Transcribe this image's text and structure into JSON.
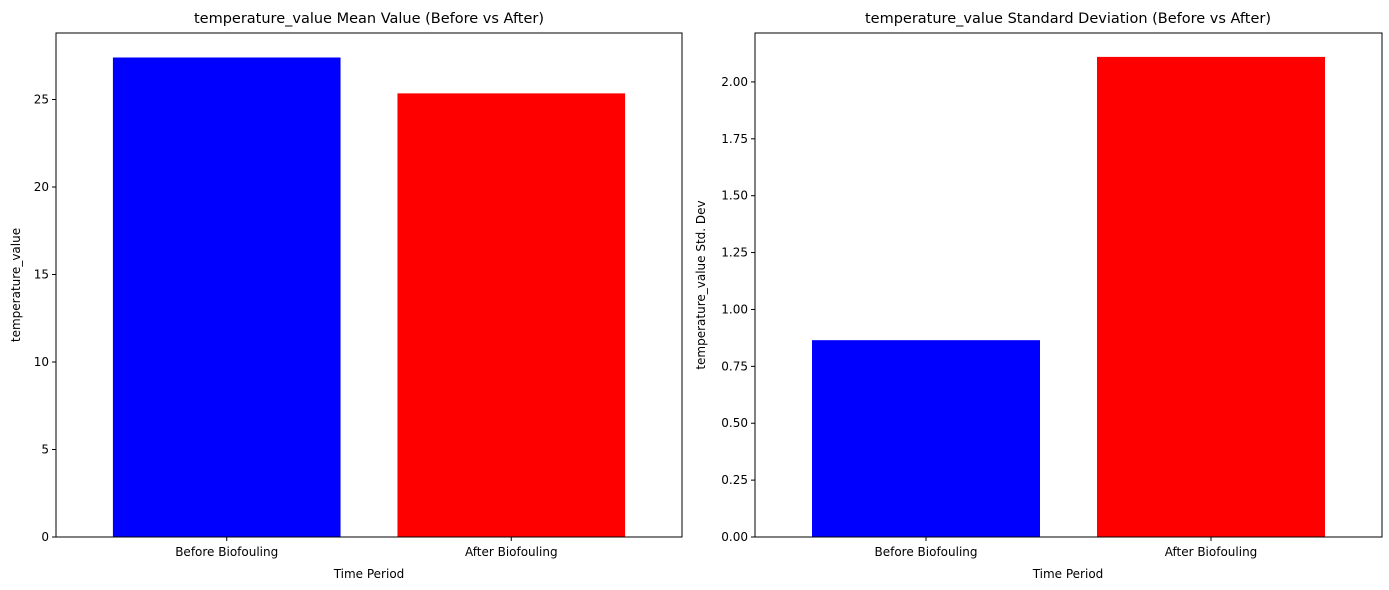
{
  "chart_data": [
    {
      "type": "bar",
      "title": "temperature_value Mean Value (Before vs After)",
      "xlabel": "Time Period",
      "ylabel": "temperature_value",
      "categories": [
        "Before Biofouling",
        "After Biofouling"
      ],
      "values": [
        27.4,
        25.35
      ],
      "colors": [
        "#0000ff",
        "#ff0000"
      ],
      "ylim": [
        0,
        28.8
      ],
      "yticks": [
        0,
        5,
        10,
        15,
        20,
        25
      ],
      "ytick_labels": [
        "0",
        "5",
        "10",
        "15",
        "20",
        "25"
      ],
      "grid": false,
      "legend": "none"
    },
    {
      "type": "bar",
      "title": "temperature_value Standard Deviation (Before vs After)",
      "xlabel": "Time Period",
      "ylabel": "temperature_value Std. Dev",
      "categories": [
        "Before Biofouling",
        "After Biofouling"
      ],
      "values": [
        0.865,
        2.11
      ],
      "colors": [
        "#0000ff",
        "#ff0000"
      ],
      "ylim": [
        0,
        2.215
      ],
      "yticks": [
        0,
        0.25,
        0.5,
        0.75,
        1.0,
        1.25,
        1.5,
        1.75,
        2.0
      ],
      "ytick_labels": [
        "0.00",
        "0.25",
        "0.50",
        "0.75",
        "1.00",
        "1.25",
        "1.50",
        "1.75",
        "2.00"
      ],
      "grid": false,
      "legend": "none"
    }
  ]
}
